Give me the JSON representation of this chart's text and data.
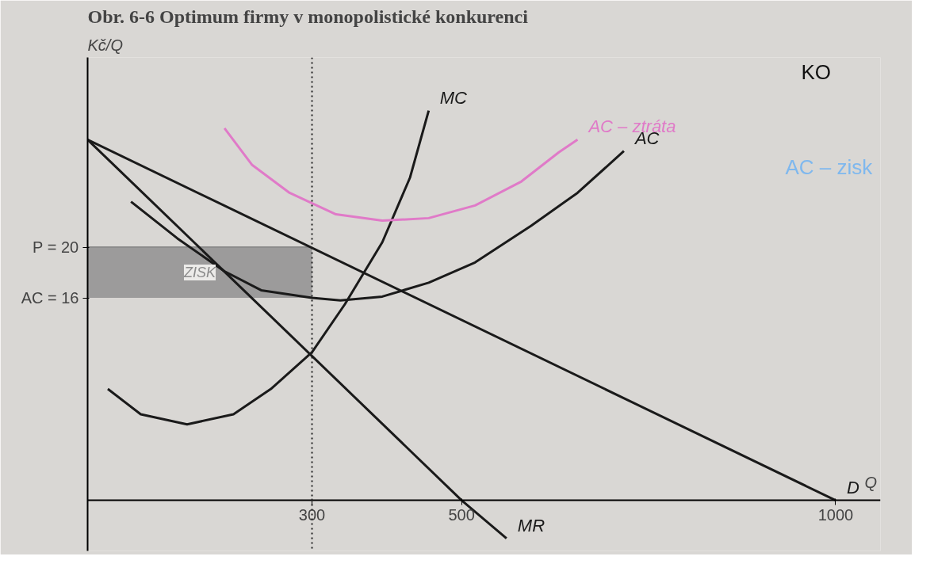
{
  "chart_data": {
    "type": "line",
    "title": "Obr. 6-6   Optimum firmy v monopolistické konkurenci",
    "ylabel": "Kč/Q",
    "xlabel": "Q",
    "xlim": [
      0,
      1060
    ],
    "ylim": [
      -4,
      35
    ],
    "xticks": [
      300,
      500,
      1000
    ],
    "yticks": [
      {
        "value": 20,
        "label": "P = 20"
      },
      {
        "value": 16,
        "label": "AC = 16"
      }
    ],
    "grid": false,
    "legend": false,
    "marker": "none",
    "line_style": "solid",
    "ref_lines": [
      {
        "axis": "x",
        "value": 300,
        "line_style": "dotted",
        "color": "#222222"
      }
    ],
    "annotations": [
      "KO",
      "AC – zisk"
    ],
    "series": [
      {
        "name": "ZISK",
        "x": [
          0,
          300
        ],
        "values": [
          20,
          20
        ],
        "lower": [
          16,
          16
        ],
        "upper": [
          20,
          20
        ],
        "color": "#8c8c8c"
      },
      {
        "name": "D",
        "x": [
          0,
          1000
        ],
        "values": [
          28.5,
          0
        ],
        "color": "#1a1a1a"
      },
      {
        "name": "MR",
        "x": [
          0,
          500,
          560
        ],
        "values": [
          28.5,
          0,
          -3.0
        ],
        "color": "#1a1a1a"
      },
      {
        "name": "MC",
        "x": [
          27,
          71,
          133,
          195,
          245,
          300,
          344,
          394,
          431,
          456
        ],
        "values": [
          8.8,
          6.8,
          6.0,
          6.8,
          8.8,
          11.7,
          15.5,
          20.4,
          25.5,
          30.8
        ],
        "color": "#1a1a1a"
      },
      {
        "name": "AC",
        "x": [
          58,
          120,
          183,
          232,
          300,
          338,
          394,
          456,
          518,
          593,
          655,
          717
        ],
        "values": [
          23.6,
          20.7,
          18.1,
          16.6,
          16,
          15.8,
          16.1,
          17.2,
          18.8,
          21.7,
          24.3,
          27.6
        ],
        "color": "#1a1a1a"
      },
      {
        "name": "AC – ztráta",
        "x": [
          183,
          220,
          270,
          332,
          394,
          456,
          518,
          580,
          630,
          655
        ],
        "values": [
          29.4,
          26.5,
          24.3,
          22.6,
          22.1,
          22.3,
          23.3,
          25.2,
          27.5,
          28.5
        ],
        "color": "#e07ac8"
      }
    ]
  }
}
